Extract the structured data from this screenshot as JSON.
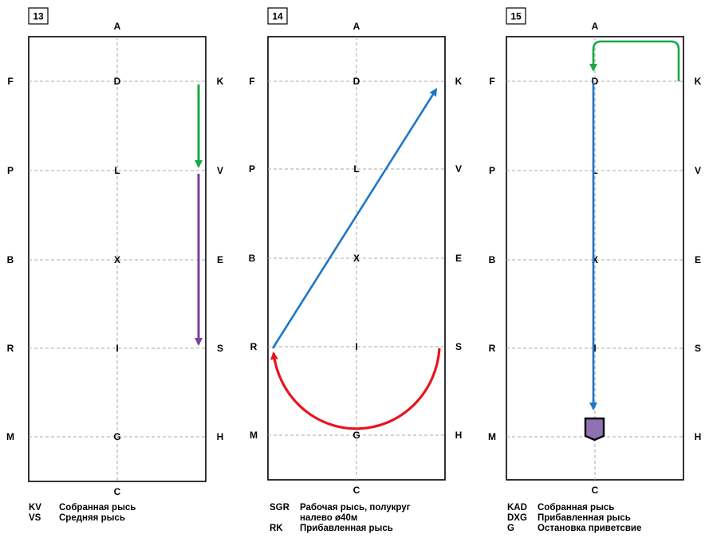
{
  "figures": [
    {
      "number": "13",
      "letters": {
        "A": "A",
        "C": "C",
        "F": "F",
        "P": "P",
        "B": "B",
        "R": "R",
        "M": "M",
        "K": "K",
        "V": "V",
        "E": "E",
        "S": "S",
        "H": "H",
        "D": "D",
        "L": "L",
        "X": "X",
        "I": "I",
        "G": "G"
      },
      "legend": [
        {
          "code": "KV",
          "text": "Собранная рысь"
        },
        {
          "code": "VS",
          "text": "Средняя рысь"
        }
      ]
    },
    {
      "number": "14",
      "letters": {
        "A": "A",
        "C": "C",
        "F": "F",
        "P": "P",
        "B": "B",
        "R": "R",
        "M": "M",
        "K": "K",
        "V": "V",
        "E": "E",
        "S": "S",
        "H": "H",
        "D": "D",
        "L": "L",
        "X": "X",
        "I": "I",
        "G": "G"
      },
      "legend": [
        {
          "code": "SGR",
          "text": "Рабочая рысь, полукруг"
        },
        {
          "code": "",
          "text": "налево ø40м"
        },
        {
          "code": "RK",
          "text": "Прибавленная рысь"
        }
      ]
    },
    {
      "number": "15",
      "letters": {
        "A": "A",
        "C": "C",
        "F": "F",
        "P": "P",
        "B": "B",
        "R": "R",
        "M": "M",
        "K": "K",
        "V": "V",
        "E": "E",
        "S": "S",
        "H": "H",
        "D": "D",
        "L": "L",
        "X": "X",
        "I": "I",
        "G": "G"
      },
      "legend": [
        {
          "code": "KAD",
          "text": "Собранная рысь"
        },
        {
          "code": "DXG",
          "text": "Прибавленная рысь"
        },
        {
          "code": "G",
          "text": "Остановка приветсвие"
        }
      ]
    }
  ],
  "colors": {
    "collected_trot": "#1aa84a",
    "medium_trot": "#7b3f9e",
    "working_trot": "#e8141c",
    "extended_trot": "#1f77c4",
    "halt_marker": "#8e72b0"
  }
}
